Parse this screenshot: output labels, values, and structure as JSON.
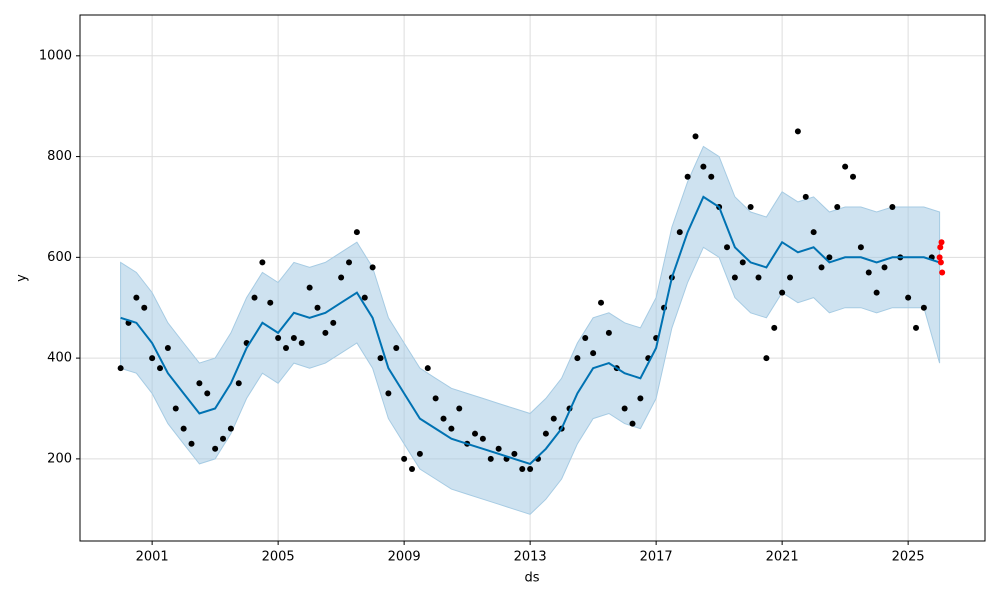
{
  "chart_data": {
    "type": "line",
    "x_label": "ds",
    "y_label": "y",
    "xlim": [
      1998.71,
      2027.44
    ],
    "ylim": [
      37,
      1081
    ],
    "xticks": [
      2001,
      2005,
      2009,
      2013,
      2017,
      2021,
      2025
    ],
    "yticks": [
      200,
      400,
      600,
      800,
      1000
    ],
    "grid": true,
    "observed": {
      "color": "#000000",
      "x": [
        2000,
        2000.25,
        2000.5,
        2000.75,
        2001,
        2001.25,
        2001.5,
        2001.75,
        2002,
        2002.25,
        2002.5,
        2002.75,
        2003,
        2003.25,
        2003.5,
        2003.75,
        2004,
        2004.25,
        2004.5,
        2004.75,
        2005,
        2005.25,
        2005.5,
        2005.75,
        2006,
        2006.25,
        2006.5,
        2006.75,
        2007,
        2007.25,
        2007.5,
        2007.75,
        2008,
        2008.25,
        2008.5,
        2008.75,
        2009,
        2009.25,
        2009.5,
        2009.75,
        2010,
        2010.25,
        2010.5,
        2010.75,
        2011,
        2011.25,
        2011.5,
        2011.75,
        2012,
        2012.25,
        2012.5,
        2012.75,
        2013,
        2013.25,
        2013.5,
        2013.75,
        2014,
        2014.25,
        2014.5,
        2014.75,
        2015,
        2015.25,
        2015.5,
        2015.75,
        2016,
        2016.25,
        2016.5,
        2016.75,
        2017,
        2017.25,
        2017.5,
        2017.75,
        2018,
        2018.25,
        2018.5,
        2018.75,
        2019,
        2019.25,
        2019.5,
        2019.75,
        2020,
        2020.25,
        2020.5,
        2020.75,
        2021,
        2021.25,
        2021.5,
        2021.75,
        2022,
        2022.25,
        2022.5,
        2022.75,
        2023,
        2023.25,
        2023.5,
        2023.75,
        2024,
        2024.25,
        2024.5,
        2024.75,
        2025,
        2025.25,
        2025.5,
        2025.75
      ],
      "values": [
        380,
        470,
        520,
        500,
        400,
        380,
        420,
        300,
        260,
        230,
        350,
        330,
        220,
        240,
        260,
        350,
        430,
        520,
        590,
        510,
        440,
        420,
        440,
        430,
        540,
        500,
        450,
        470,
        560,
        590,
        650,
        520,
        580,
        400,
        330,
        420,
        200,
        180,
        210,
        380,
        320,
        280,
        260,
        300,
        230,
        250,
        240,
        200,
        220,
        200,
        210,
        180,
        180,
        200,
        250,
        280,
        260,
        300,
        400,
        440,
        410,
        510,
        450,
        380,
        300,
        270,
        320,
        400,
        440,
        500,
        560,
        650,
        760,
        840,
        780,
        760,
        700,
        620,
        560,
        590,
        700,
        560,
        400,
        460,
        530,
        560,
        850,
        720,
        650,
        580,
        600,
        700,
        780,
        760,
        620,
        570,
        530,
        580,
        700,
        600,
        520,
        460,
        500,
        600
      ]
    },
    "forecast": {
      "color": "#0072b2",
      "band_color": "#a6cbe3",
      "x": [
        2000,
        2000.5,
        2001,
        2001.5,
        2002,
        2002.5,
        2003,
        2003.5,
        2004,
        2004.5,
        2005,
        2005.5,
        2006,
        2006.5,
        2007,
        2007.5,
        2008,
        2008.5,
        2009,
        2009.5,
        2010,
        2010.5,
        2011,
        2011.5,
        2012,
        2012.5,
        2013,
        2013.5,
        2014,
        2014.5,
        2015,
        2015.5,
        2016,
        2016.5,
        2017,
        2017.5,
        2018,
        2018.5,
        2019,
        2019.5,
        2020,
        2020.5,
        2021,
        2021.5,
        2022,
        2022.5,
        2023,
        2023.5,
        2024,
        2024.5,
        2025,
        2025.5,
        2026
      ],
      "values": [
        480,
        470,
        430,
        370,
        330,
        290,
        300,
        350,
        420,
        470,
        450,
        490,
        480,
        490,
        510,
        530,
        480,
        380,
        330,
        280,
        260,
        240,
        230,
        220,
        210,
        200,
        190,
        220,
        260,
        330,
        380,
        390,
        370,
        360,
        420,
        560,
        650,
        720,
        700,
        620,
        590,
        580,
        630,
        610,
        620,
        590,
        600,
        600,
        590,
        600,
        600,
        600,
        590
      ],
      "lower": [
        380,
        370,
        330,
        270,
        230,
        190,
        200,
        250,
        320,
        370,
        350,
        390,
        380,
        390,
        410,
        430,
        380,
        280,
        230,
        180,
        160,
        140,
        130,
        120,
        110,
        100,
        90,
        120,
        160,
        230,
        280,
        290,
        270,
        260,
        320,
        460,
        550,
        620,
        600,
        520,
        490,
        480,
        530,
        510,
        520,
        490,
        500,
        500,
        490,
        500,
        500,
        500,
        390
      ],
      "upper": [
        590,
        570,
        530,
        470,
        430,
        390,
        400,
        450,
        520,
        570,
        550,
        590,
        580,
        590,
        610,
        630,
        580,
        480,
        430,
        380,
        360,
        340,
        330,
        320,
        310,
        300,
        290,
        320,
        360,
        430,
        480,
        490,
        470,
        460,
        520,
        660,
        750,
        820,
        800,
        720,
        690,
        680,
        730,
        710,
        720,
        690,
        700,
        700,
        690,
        700,
        700,
        700,
        690
      ]
    },
    "holdout": {
      "color": "#ff0000",
      "x": [
        2026,
        2026.02,
        2026.04,
        2026.06,
        2026.08
      ],
      "values": [
        600,
        620,
        590,
        630,
        570
      ]
    }
  }
}
